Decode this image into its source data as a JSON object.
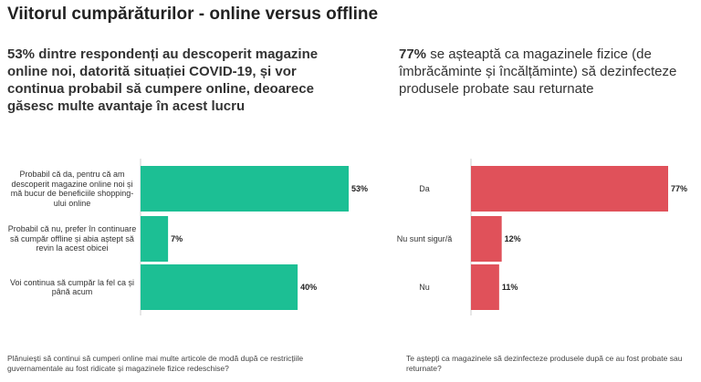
{
  "page": {
    "title": "Viitorul cumpărăturilor - online versus offline"
  },
  "left_panel": {
    "lead": "53%",
    "subtitle_rest": " dintre respondenți au descoperit magazine online noi, datorită situației COVID-19, și vor continua probabil să cumpere online, deoarece găsesc multe avantaje în acest lucru",
    "question": "Plănuiești să continui să cumperi online mai multe articole de modă după ce restricțiile guvernamentale au fost ridicate și magazinele fizice redeschise?"
  },
  "right_panel": {
    "lead": "77%",
    "subtitle_rest": " se așteaptă ca magazinele fizice (de îmbrăcăminte și încălțăminte) să dezinfecteze produsele probate sau returnate",
    "question": "Te aștepți ca magazinele să dezinfecteze produsele după ce au fost probate sau returnate?"
  },
  "chart_data": [
    {
      "type": "bar",
      "orientation": "horizontal",
      "categories": [
        "Probabil că da, pentru că am descoperit magazine online noi și mă bucur de beneficiile shopping-ului online",
        "Probabil că nu, prefer în continuare să cumpăr offline și abia aștept să revin la acest obicei",
        "Voi continua să cumpăr la fel ca și până acum"
      ],
      "values": [
        53,
        7,
        40
      ],
      "value_labels": [
        "53%",
        "7%",
        "40%"
      ],
      "unit": "%",
      "xlim": [
        0,
        53
      ],
      "color": "#1cbf94",
      "grid": false,
      "legend": "none"
    },
    {
      "type": "bar",
      "orientation": "horizontal",
      "categories": [
        "Da",
        "Nu sunt sigur/ă",
        "Nu"
      ],
      "values": [
        77,
        12,
        11
      ],
      "value_labels": [
        "77%",
        "12%",
        "11%"
      ],
      "unit": "%",
      "xlim": [
        0,
        77
      ],
      "color": "#e0515a",
      "grid": false,
      "legend": "none"
    }
  ]
}
